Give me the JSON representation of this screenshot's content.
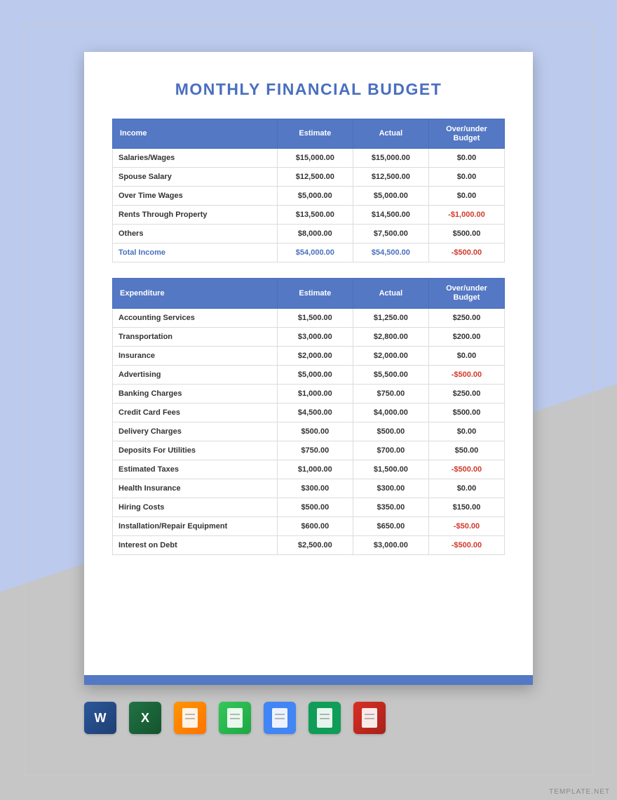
{
  "title": "MONTHLY FINANCIAL BUDGET",
  "colors": {
    "header_bg": "#5478c4",
    "header_border": "#4a6fbf",
    "title_color": "#4a6fbf",
    "row_border": "#dcdcdc",
    "negative": "#d23a2a",
    "bg_lavender": "#bccaed",
    "bg_gray": "#c6c6c6",
    "page_bg": "#ffffff"
  },
  "income_table": {
    "headers": [
      "Income",
      "Estimate",
      "Actual",
      "Over/under Budget"
    ],
    "rows": [
      {
        "label": "Salaries/Wages",
        "estimate": "$15,000.00",
        "actual": "$15,000.00",
        "diff": "$0.00",
        "neg": false
      },
      {
        "label": "Spouse Salary",
        "estimate": "$12,500.00",
        "actual": "$12,500.00",
        "diff": "$0.00",
        "neg": false
      },
      {
        "label": "Over Time Wages",
        "estimate": "$5,000.00",
        "actual": "$5,000.00",
        "diff": "$0.00",
        "neg": false
      },
      {
        "label": "Rents Through Property",
        "estimate": "$13,500.00",
        "actual": "$14,500.00",
        "diff": "-$1,000.00",
        "neg": true
      },
      {
        "label": "Others",
        "estimate": "$8,000.00",
        "actual": "$7,500.00",
        "diff": "$500.00",
        "neg": false
      }
    ],
    "total": {
      "label": "Total Income",
      "estimate": "$54,000.00",
      "actual": "$54,500.00",
      "diff": "-$500.00",
      "neg": true
    }
  },
  "expenditure_table": {
    "headers": [
      "Expenditure",
      "Estimate",
      "Actual",
      "Over/under Budget"
    ],
    "rows": [
      {
        "label": "Accounting Services",
        "estimate": "$1,500.00",
        "actual": "$1,250.00",
        "diff": "$250.00",
        "neg": false
      },
      {
        "label": "Transportation",
        "estimate": "$3,000.00",
        "actual": "$2,800.00",
        "diff": "$200.00",
        "neg": false
      },
      {
        "label": "Insurance",
        "estimate": "$2,000.00",
        "actual": "$2,000.00",
        "diff": "$0.00",
        "neg": false
      },
      {
        "label": "Advertising",
        "estimate": "$5,000.00",
        "actual": "$5,500.00",
        "diff": "-$500.00",
        "neg": true
      },
      {
        "label": "Banking Charges",
        "estimate": "$1,000.00",
        "actual": "$750.00",
        "diff": "$250.00",
        "neg": false
      },
      {
        "label": "Credit Card Fees",
        "estimate": "$4,500.00",
        "actual": "$4,000.00",
        "diff": "$500.00",
        "neg": false
      },
      {
        "label": "Delivery Charges",
        "estimate": "$500.00",
        "actual": "$500.00",
        "diff": "$0.00",
        "neg": false
      },
      {
        "label": "Deposits For Utilities",
        "estimate": "$750.00",
        "actual": "$700.00",
        "diff": "$50.00",
        "neg": false
      },
      {
        "label": "Estimated Taxes",
        "estimate": "$1,000.00",
        "actual": "$1,500.00",
        "diff": "-$500.00",
        "neg": true
      },
      {
        "label": "Health Insurance",
        "estimate": "$300.00",
        "actual": "$300.00",
        "diff": "$0.00",
        "neg": false
      },
      {
        "label": "Hiring Costs",
        "estimate": "$500.00",
        "actual": "$350.00",
        "diff": "$150.00",
        "neg": false
      },
      {
        "label": "Installation/Repair Equipment",
        "estimate": "$600.00",
        "actual": "$650.00",
        "diff": "-$50.00",
        "neg": true
      },
      {
        "label": "Interest on Debt",
        "estimate": "$2,500.00",
        "actual": "$3,000.00",
        "diff": "-$500.00",
        "neg": true
      }
    ]
  },
  "icons": [
    {
      "name": "word-icon",
      "label": "W",
      "class": "icon-word"
    },
    {
      "name": "excel-icon",
      "label": "X",
      "class": "icon-excel"
    },
    {
      "name": "pages-icon",
      "label": "",
      "class": "icon-pages"
    },
    {
      "name": "numbers-icon",
      "label": "",
      "class": "icon-numbers"
    },
    {
      "name": "gdocs-icon",
      "label": "",
      "class": "icon-gdocs"
    },
    {
      "name": "gsheets-icon",
      "label": "",
      "class": "icon-gsheets"
    },
    {
      "name": "pdf-icon",
      "label": "",
      "class": "icon-pdf"
    }
  ],
  "watermark": "TEMPLATE.NET"
}
